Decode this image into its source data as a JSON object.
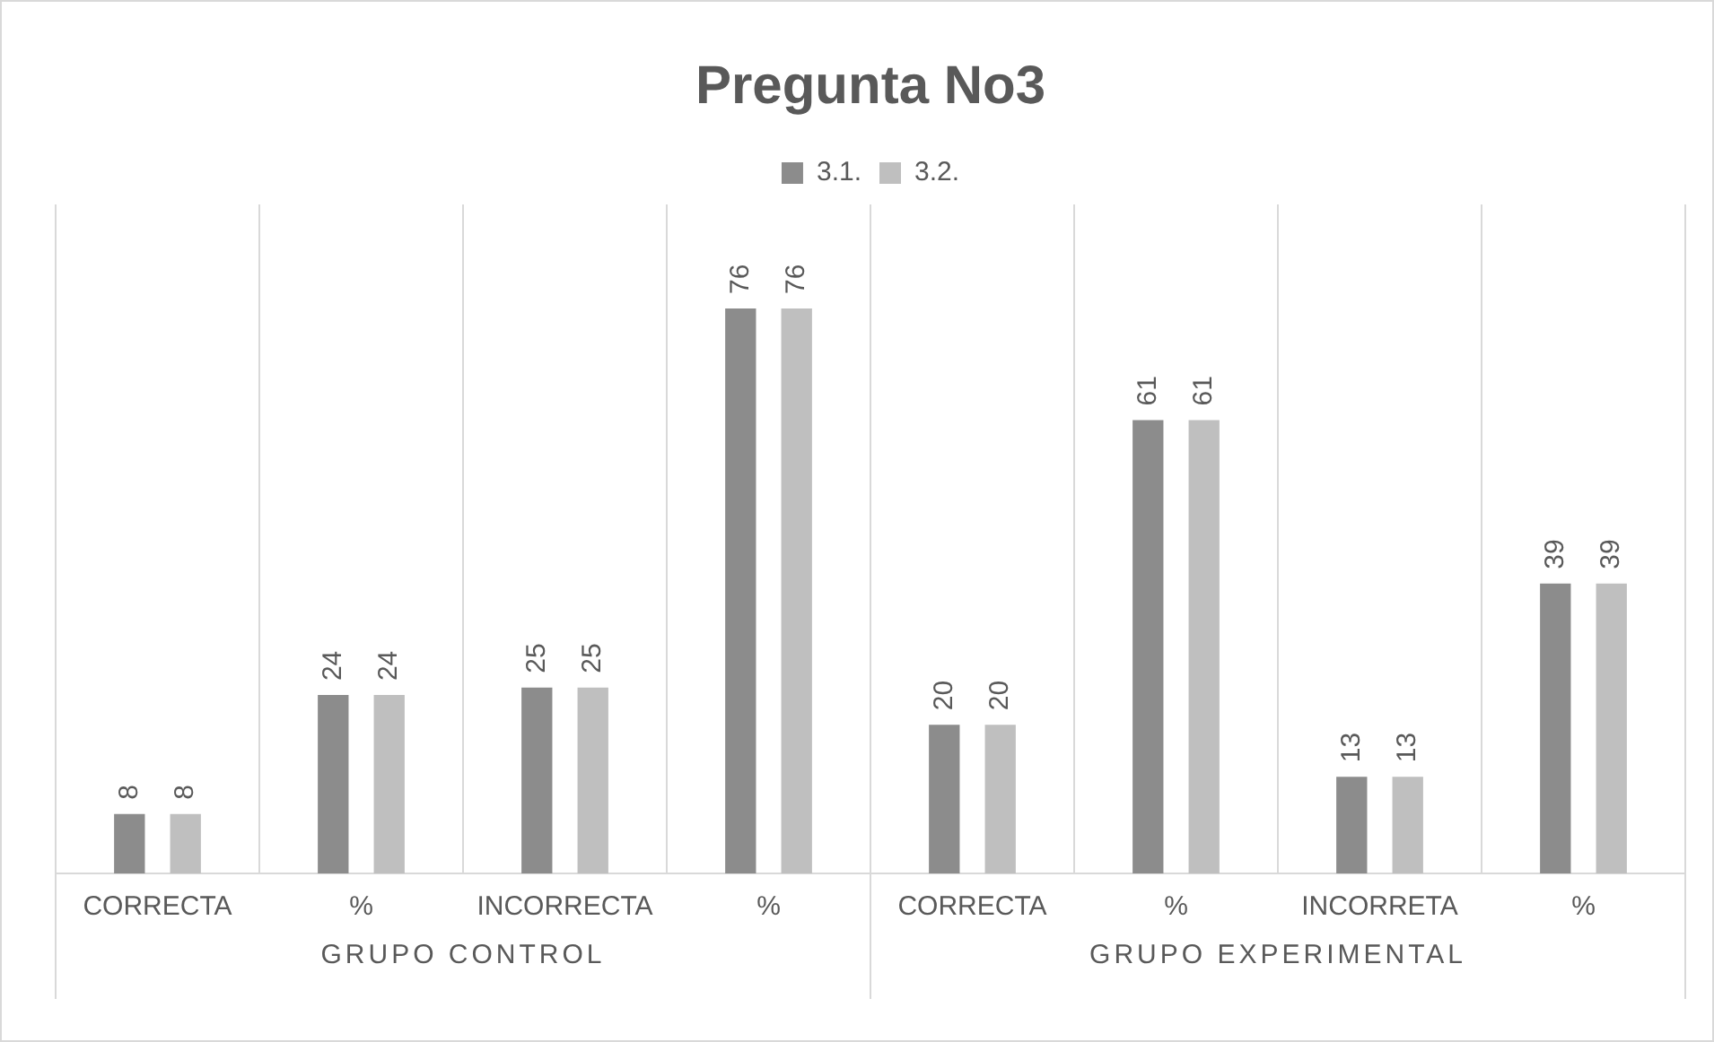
{
  "chart_data": {
    "type": "bar",
    "title": "Pregunta No3",
    "categories": [
      "CORRECTA",
      "%",
      "INCORRECTA",
      "%",
      "CORRECTA",
      "%",
      "INCORRETA",
      "%"
    ],
    "series": [
      {
        "name": "3.1.",
        "color": "#8c8c8c",
        "values": [
          8,
          24,
          25,
          76,
          20,
          61,
          13,
          39
        ]
      },
      {
        "name": "3.2.",
        "color": "#bfbfbf",
        "values": [
          8,
          24,
          25,
          76,
          20,
          61,
          13,
          39
        ]
      }
    ],
    "annotations": [
      "GRUPO CONTROL",
      "GRUPO EXPERIMENTAL"
    ],
    "data_labels": true,
    "grid": "x",
    "legend": "top"
  }
}
